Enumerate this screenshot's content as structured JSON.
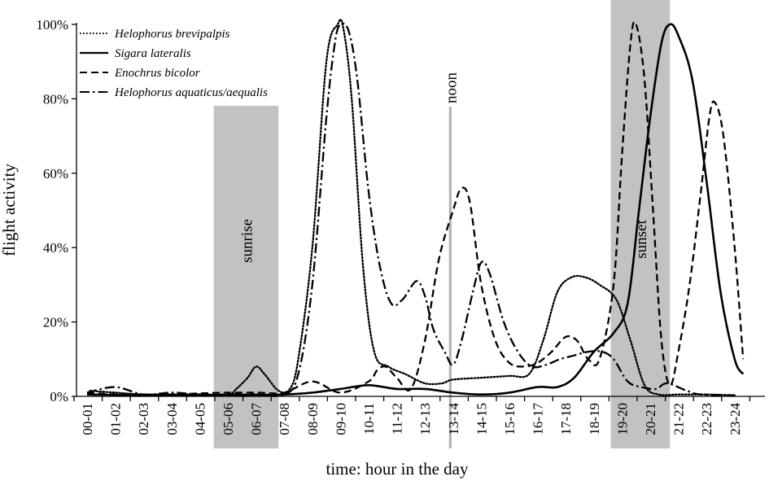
{
  "chart_data": {
    "type": "line",
    "title": "",
    "xlabel": "time: hour in the day",
    "ylabel": "flight activity",
    "ylim": [
      0,
      100
    ],
    "yticks": [
      "0%",
      "20%",
      "40%",
      "60%",
      "80%",
      "100%"
    ],
    "grid": false,
    "legend_position": "top-left",
    "categories": [
      "00-01",
      "01-02",
      "02-03",
      "03-04",
      "04-05",
      "05-06",
      "06-07",
      "07-08",
      "08-09",
      "09-10",
      "10-11",
      "11-12",
      "12-13",
      "13-14",
      "14-15",
      "15-16",
      "16-17",
      "17-18",
      "18-19",
      "19-20",
      "20-21",
      "21-22",
      "22-23",
      "23-24"
    ],
    "series": [
      {
        "name": "Helophorus brevipalpis",
        "dash": "dotted",
        "points": [
          [
            0.1,
            1.5
          ],
          [
            1,
            1
          ],
          [
            2,
            0.5
          ],
          [
            3,
            0.5
          ],
          [
            4,
            0.5
          ],
          [
            5,
            0.5
          ],
          [
            5.3,
            2
          ],
          [
            5.7,
            5
          ],
          [
            6,
            8
          ],
          [
            6.3,
            6
          ],
          [
            6.8,
            1.5
          ],
          [
            7.2,
            2
          ],
          [
            7.5,
            10
          ],
          [
            8,
            40
          ],
          [
            8.5,
            90
          ],
          [
            8.9,
            100
          ],
          [
            9.1,
            99
          ],
          [
            9.4,
            80
          ],
          [
            9.8,
            35
          ],
          [
            10.2,
            12
          ],
          [
            10.7,
            8
          ],
          [
            11.3,
            6
          ],
          [
            12,
            3.5
          ],
          [
            12.6,
            3.5
          ],
          [
            13,
            4.5
          ],
          [
            14,
            5
          ],
          [
            15,
            5.5
          ],
          [
            15.7,
            6
          ],
          [
            16.2,
            15
          ],
          [
            16.7,
            28
          ],
          [
            17.2,
            32
          ],
          [
            17.7,
            32
          ],
          [
            18.2,
            30
          ],
          [
            18.8,
            26
          ],
          [
            19.3,
            15
          ],
          [
            19.8,
            3
          ],
          [
            20.3,
            0.5
          ],
          [
            21,
            0.5
          ],
          [
            22,
            0.5
          ],
          [
            23,
            0.3
          ]
        ]
      },
      {
        "name": "Sigara lateralis",
        "dash": "solid",
        "points": [
          [
            0,
            0.5
          ],
          [
            2,
            0.3
          ],
          [
            4,
            0.3
          ],
          [
            5,
            0.4
          ],
          [
            6,
            0.4
          ],
          [
            7,
            0.5
          ],
          [
            8,
            1
          ],
          [
            9,
            2
          ],
          [
            10,
            3
          ],
          [
            11,
            2
          ],
          [
            12,
            2
          ],
          [
            13,
            1
          ],
          [
            14,
            0.5
          ],
          [
            15,
            1
          ],
          [
            16,
            2.5
          ],
          [
            16.7,
            2.5
          ],
          [
            17.3,
            5
          ],
          [
            18,
            12
          ],
          [
            18.7,
            17
          ],
          [
            19.2,
            25
          ],
          [
            19.6,
            50
          ],
          [
            20,
            75
          ],
          [
            20.4,
            95
          ],
          [
            20.7,
            100
          ],
          [
            21,
            97
          ],
          [
            21.5,
            85
          ],
          [
            22,
            58
          ],
          [
            22.5,
            28
          ],
          [
            23,
            10
          ],
          [
            23.3,
            6
          ]
        ]
      },
      {
        "name": "Enochrus bicolor",
        "dash": "dashed",
        "points": [
          [
            0,
            1
          ],
          [
            1,
            0.5
          ],
          [
            2,
            0.5
          ],
          [
            3,
            0.5
          ],
          [
            4,
            0.8
          ],
          [
            5,
            1
          ],
          [
            6,
            1
          ],
          [
            7,
            1
          ],
          [
            8,
            4
          ],
          [
            9,
            1
          ],
          [
            10,
            4
          ],
          [
            10.3,
            7
          ],
          [
            10.6,
            8
          ],
          [
            11,
            5
          ],
          [
            11.5,
            2
          ],
          [
            12,
            15
          ],
          [
            12.5,
            37
          ],
          [
            13,
            50
          ],
          [
            13.3,
            56
          ],
          [
            13.6,
            52
          ],
          [
            14,
            30
          ],
          [
            14.5,
            15
          ],
          [
            15,
            9
          ],
          [
            15.5,
            8
          ],
          [
            16,
            9
          ],
          [
            16.5,
            12
          ],
          [
            17,
            16
          ],
          [
            17.4,
            15
          ],
          [
            17.8,
            10
          ],
          [
            18.2,
            10
          ],
          [
            18.7,
            30
          ],
          [
            19,
            65
          ],
          [
            19.3,
            95
          ],
          [
            19.5,
            100
          ],
          [
            19.8,
            85
          ],
          [
            20.1,
            50
          ],
          [
            20.4,
            15
          ],
          [
            20.7,
            3
          ],
          [
            21,
            12
          ],
          [
            21.4,
            30
          ],
          [
            21.8,
            55
          ],
          [
            22.1,
            75
          ],
          [
            22.3,
            79
          ],
          [
            22.6,
            70
          ],
          [
            23,
            40
          ],
          [
            23.3,
            10
          ]
        ]
      },
      {
        "name": "Helophorus aquaticus/aequalis",
        "dash": "dashdot",
        "points": [
          [
            0,
            1
          ],
          [
            1,
            2.5
          ],
          [
            2,
            0.5
          ],
          [
            3,
            1
          ],
          [
            4,
            0.5
          ],
          [
            5,
            0.5
          ],
          [
            6,
            0.5
          ],
          [
            7,
            0.5
          ],
          [
            7.5,
            6
          ],
          [
            8,
            30
          ],
          [
            8.5,
            75
          ],
          [
            8.8,
            95
          ],
          [
            9,
            100
          ],
          [
            9.3,
            98
          ],
          [
            9.6,
            85
          ],
          [
            10,
            55
          ],
          [
            10.4,
            35
          ],
          [
            10.8,
            25
          ],
          [
            11.2,
            26
          ],
          [
            11.7,
            31
          ],
          [
            12,
            27
          ],
          [
            12.3,
            18
          ],
          [
            12.7,
            12
          ],
          [
            13,
            8.5
          ],
          [
            13.3,
            15
          ],
          [
            13.7,
            28
          ],
          [
            14,
            36
          ],
          [
            14.3,
            33
          ],
          [
            14.8,
            20
          ],
          [
            15.3,
            12
          ],
          [
            15.8,
            8
          ],
          [
            16.3,
            8.5
          ],
          [
            16.8,
            10
          ],
          [
            17.3,
            11
          ],
          [
            17.8,
            12
          ],
          [
            18.3,
            12
          ],
          [
            18.7,
            10
          ],
          [
            19.2,
            4
          ],
          [
            19.7,
            2.5
          ],
          [
            20.2,
            2
          ],
          [
            20.6,
            3.5
          ],
          [
            21.3,
            1.5
          ],
          [
            21.8,
            0.5
          ],
          [
            23,
            0.3
          ]
        ]
      }
    ],
    "bands": [
      {
        "label": "sunrise",
        "from": 4.5,
        "to": 6.8,
        "color": "#c2c2c2"
      },
      {
        "label": "sunset",
        "from": 18.6,
        "to": 20.7,
        "color": "#c2c2c2"
      }
    ],
    "markers": [
      {
        "label": "noon",
        "at": 12.9,
        "color": "#b0b0b0"
      }
    ]
  }
}
